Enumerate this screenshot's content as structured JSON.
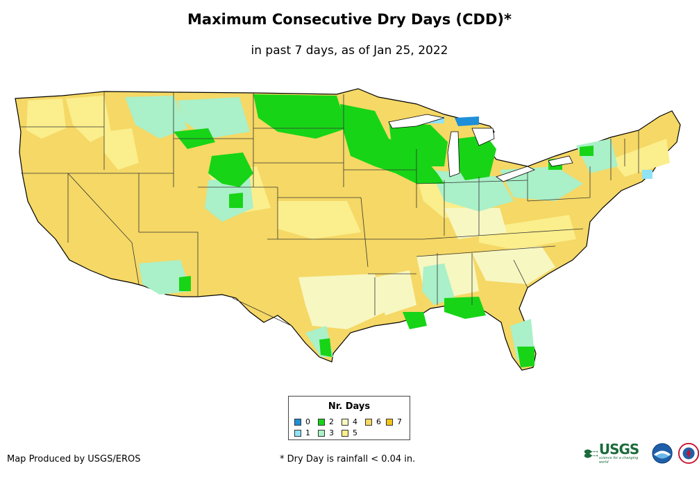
{
  "title": "Maximum Consecutive Dry Days (CDD)*",
  "subtitle": "in past 7 days, as of Jan 25, 2022",
  "legend": {
    "title": "Nr. Days",
    "items": [
      {
        "label": "0",
        "color": "#1e8fd8"
      },
      {
        "label": "1",
        "color": "#8fe3f5"
      },
      {
        "label": "2",
        "color": "#17d417"
      },
      {
        "label": "3",
        "color": "#aaf0c8"
      },
      {
        "label": "4",
        "color": "#f7f7c2"
      },
      {
        "label": "5",
        "color": "#fbee8c"
      },
      {
        "label": "6",
        "color": "#f5d865"
      },
      {
        "label": "7",
        "color": "#f2c318"
      }
    ]
  },
  "credit": "Map Produced by USGS/EROS",
  "footnote": "* Dry Day is rainfall < 0.04 in.",
  "logos": {
    "usgs": "USGS",
    "usgs_tagline": "science for a changing world",
    "noaa": "NOAA",
    "nws": "National Weather Service"
  }
}
